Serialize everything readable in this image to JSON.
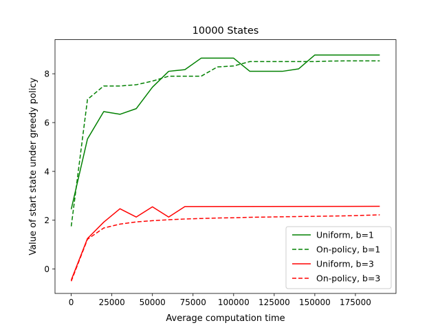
{
  "chart_data": {
    "type": "line",
    "title": "10000 States",
    "xlabel": "Average computation time",
    "ylabel": "Value of start state under greedy policy",
    "xlim": [
      -10000,
      200000
    ],
    "ylim": [
      -1,
      9.4
    ],
    "xticks": [
      0,
      25000,
      50000,
      75000,
      100000,
      125000,
      150000,
      175000
    ],
    "yticks": [
      0,
      2,
      4,
      6,
      8
    ],
    "grid": false,
    "legend_position": "lower-right",
    "series": [
      {
        "name": "Uniform, b=1",
        "color": "#008000",
        "dash": "solid",
        "x": [
          0,
          10000,
          20000,
          30000,
          40000,
          50000,
          60000,
          70000,
          80000,
          90000,
          100000,
          110000,
          120000,
          130000,
          140000,
          150000,
          160000,
          170000,
          180000,
          190000
        ],
        "y": [
          2.45,
          5.33,
          6.45,
          6.34,
          6.57,
          7.45,
          8.1,
          8.17,
          8.64,
          8.64,
          8.64,
          8.1,
          8.1,
          8.1,
          8.2,
          8.77,
          8.77,
          8.77,
          8.77,
          8.77
        ]
      },
      {
        "name": "On-policy, b=1",
        "color": "#008000",
        "dash": "dashed",
        "x": [
          0,
          10000,
          20000,
          30000,
          40000,
          50000,
          60000,
          70000,
          80000,
          90000,
          100000,
          110000,
          120000,
          130000,
          140000,
          150000,
          160000,
          170000,
          180000,
          190000
        ],
        "y": [
          1.75,
          6.95,
          7.5,
          7.5,
          7.55,
          7.7,
          7.9,
          7.9,
          7.9,
          8.28,
          8.32,
          8.5,
          8.5,
          8.5,
          8.5,
          8.5,
          8.52,
          8.53,
          8.53,
          8.53
        ]
      },
      {
        "name": "Uniform, b=3",
        "color": "#ff0000",
        "dash": "solid",
        "x": [
          0,
          10000,
          20000,
          30000,
          40000,
          50000,
          60000,
          70000,
          190000
        ],
        "y": [
          -0.45,
          1.25,
          1.92,
          2.47,
          2.13,
          2.55,
          2.13,
          2.56,
          2.57
        ]
      },
      {
        "name": "On-policy, b=3",
        "color": "#ff0000",
        "dash": "dashed",
        "x": [
          0,
          10000,
          20000,
          30000,
          40000,
          50000,
          60000,
          70000,
          80000,
          90000,
          100000,
          110000,
          120000,
          130000,
          140000,
          150000,
          160000,
          170000,
          180000,
          190000
        ],
        "y": [
          -0.5,
          1.22,
          1.68,
          1.84,
          1.93,
          1.98,
          2.02,
          2.05,
          2.07,
          2.09,
          2.1,
          2.12,
          2.13,
          2.14,
          2.15,
          2.16,
          2.17,
          2.18,
          2.2,
          2.22
        ]
      }
    ]
  }
}
